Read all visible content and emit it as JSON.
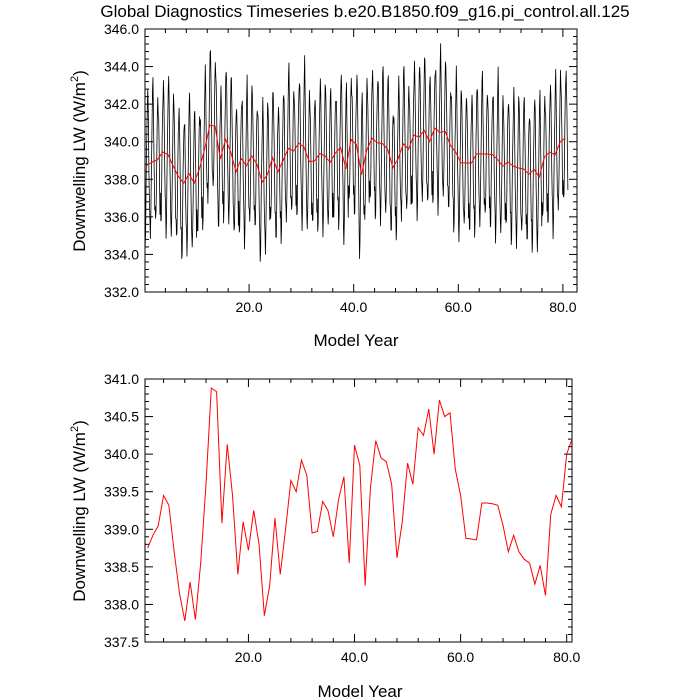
{
  "title": "Global Diagnostics Timeseries b.e20.B1850.f09_g16.pi_control.all.125",
  "chart_data": [
    {
      "type": "line",
      "xlabel": "Model Year",
      "ylabel_main": "Downwelling LW (W/m",
      "ylabel_sup": "2",
      "ylabel_end": ")",
      "xlim": [
        0.1,
        82.7
      ],
      "ylim": [
        332.0,
        346.0
      ],
      "xticks": [
        20,
        40,
        60,
        80
      ],
      "xtick_labels": [
        "20.0",
        "40.0",
        "60.0",
        "80.0"
      ],
      "yticks": [
        332,
        334,
        336,
        338,
        340,
        342,
        344,
        346
      ],
      "ytick_labels": [
        "332.0",
        "334.0",
        "336.0",
        "338.0",
        "340.0",
        "342.0",
        "344.0",
        "346.0"
      ],
      "series": [
        {
          "color": "#000000",
          "description": "monthly values (seasonal cycle amplitude ~ +/-3 W/m2 about the annual mean)",
          "monthly_anomaly_cycle": [
            -2.6,
            -3.8,
            -3.2,
            -1.4,
            0.6,
            2.1,
            3.3,
            3.6,
            2.7,
            1.0,
            -0.9,
            -2.5
          ],
          "base": "annual"
        },
        {
          "color": "#ff0000",
          "base": "annual"
        }
      ]
    },
    {
      "type": "line",
      "xlabel": "Model Year",
      "ylabel_main": "Downwelling LW (W/m",
      "ylabel_sup": "2",
      "ylabel_end": ")",
      "xlim": [
        0.5,
        81.0
      ],
      "ylim": [
        337.5,
        341.0
      ],
      "xticks": [
        20,
        40,
        60,
        80
      ],
      "xtick_labels": [
        "20.0",
        "40.0",
        "60.0",
        "80.0"
      ],
      "yticks": [
        337.5,
        338.0,
        338.5,
        339.0,
        339.5,
        340.0,
        340.5,
        341.0
      ],
      "ytick_labels": [
        "337.5",
        "338.0",
        "338.5",
        "339.0",
        "339.5",
        "340.0",
        "340.5",
        "341.0"
      ],
      "series": [
        {
          "color": "#ff0000",
          "base": "annual"
        }
      ]
    }
  ],
  "annual": {
    "x": [
      1,
      2,
      3,
      4,
      5,
      6,
      7,
      8,
      9,
      10,
      11,
      12,
      13,
      14,
      15,
      16,
      17,
      18,
      19,
      20,
      21,
      22,
      23,
      24,
      25,
      26,
      27,
      28,
      29,
      30,
      31,
      32,
      33,
      34,
      35,
      36,
      37,
      38,
      39,
      40,
      41,
      42,
      43,
      44,
      45,
      46,
      47,
      48,
      49,
      50,
      51,
      52,
      53,
      54,
      55,
      56,
      57,
      58,
      59,
      60,
      61,
      62,
      63,
      64,
      65,
      66,
      67,
      68,
      69,
      70,
      71,
      72,
      73,
      74,
      75,
      76,
      77,
      78,
      79,
      80,
      81
    ],
    "y": [
      338.75,
      338.92,
      339.05,
      339.45,
      339.32,
      338.7,
      338.15,
      337.78,
      338.3,
      337.8,
      338.55,
      339.6,
      340.88,
      340.83,
      339.08,
      340.13,
      339.45,
      338.4,
      339.1,
      338.72,
      339.25,
      338.8,
      337.85,
      338.25,
      339.15,
      338.4,
      339.0,
      339.65,
      339.5,
      339.92,
      339.72,
      338.95,
      338.97,
      339.37,
      339.25,
      338.9,
      339.4,
      339.7,
      338.55,
      340.12,
      339.85,
      338.25,
      339.55,
      340.18,
      339.95,
      339.9,
      339.6,
      338.62,
      339.1,
      339.88,
      339.6,
      340.35,
      340.25,
      340.6,
      340.0,
      340.72,
      340.5,
      340.55,
      339.8,
      339.45,
      338.88,
      338.87,
      338.86,
      339.35,
      339.35,
      339.34,
      339.32,
      339.05,
      338.7,
      338.92,
      338.7,
      338.6,
      338.55,
      338.27,
      338.52,
      338.12,
      339.2,
      339.45,
      339.3,
      340.0,
      340.2
    ]
  }
}
